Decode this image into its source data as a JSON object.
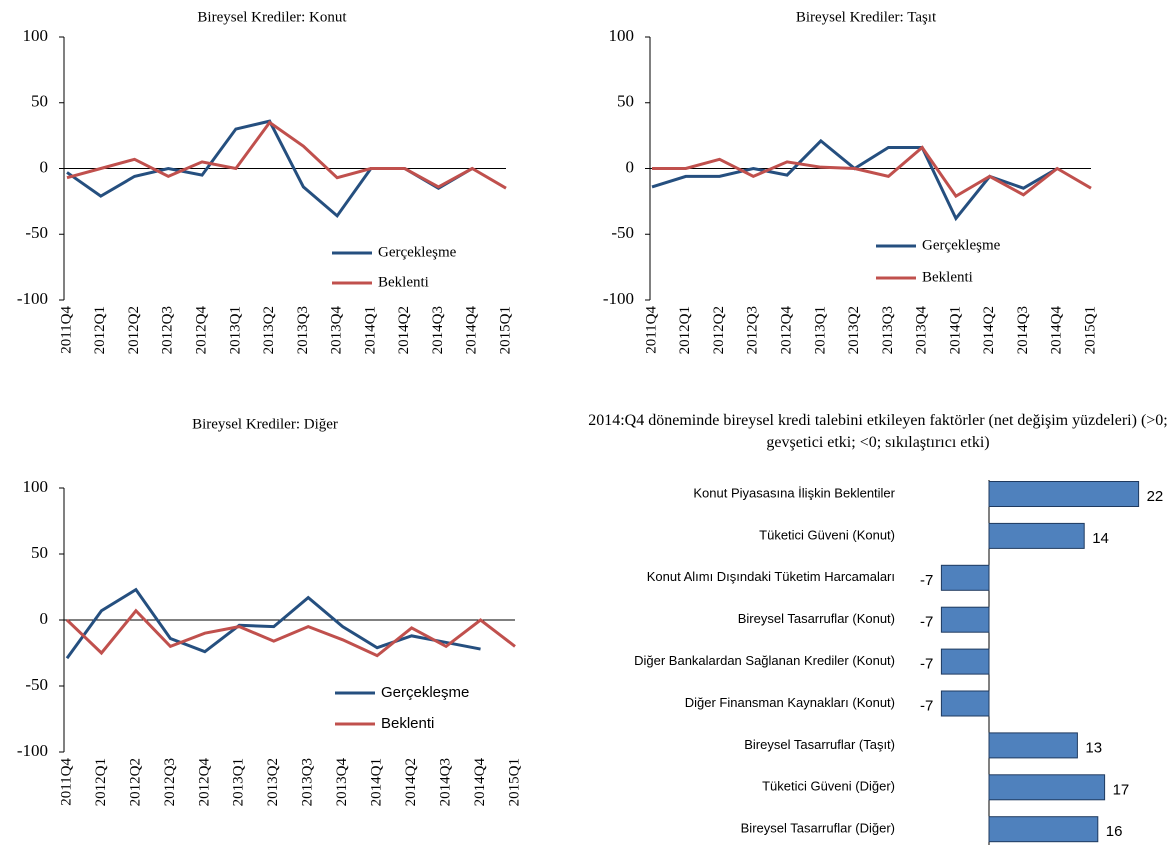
{
  "chart_data": [
    {
      "type": "line",
      "title": "Bireysel Krediler: Konut",
      "categories": [
        "2011Q4",
        "2012Q1",
        "2012Q2",
        "2012Q3",
        "2012Q4",
        "2013Q1",
        "2013Q2",
        "2013Q3",
        "2013Q4",
        "2014Q1",
        "2014Q2",
        "2014Q3",
        "2014Q4",
        "2015Q1"
      ],
      "series": [
        {
          "name": "Gerçekleşme",
          "color": "#254f7f",
          "values": [
            -3,
            -21,
            -6,
            0,
            -5,
            30,
            36,
            -14,
            -36,
            0,
            0,
            -15,
            0,
            null
          ]
        },
        {
          "name": "Beklenti",
          "color": "#c0504d",
          "values": [
            -7,
            0,
            7,
            -6,
            5,
            0,
            35,
            17,
            -7,
            0,
            0,
            -14,
            0,
            -15
          ]
        }
      ],
      "ylim": [
        -100,
        100
      ],
      "yticks": [
        -100,
        -50,
        0,
        50,
        100
      ]
    },
    {
      "type": "line",
      "title": "Bireysel Krediler: Taşıt",
      "categories": [
        "2011Q4",
        "2012Q1",
        "2012Q2",
        "2012Q3",
        "2012Q4",
        "2013Q1",
        "2013Q2",
        "2013Q3",
        "2013Q4",
        "2014Q1",
        "2014Q2",
        "2014Q3",
        "2014Q4",
        "2015Q1"
      ],
      "series": [
        {
          "name": "Gerçekleşme",
          "color": "#254f7f",
          "values": [
            -14,
            -6,
            -6,
            0,
            -5,
            21,
            0,
            16,
            16,
            -38,
            -6,
            -15,
            0,
            null
          ]
        },
        {
          "name": "Beklenti",
          "color": "#c0504d",
          "values": [
            0,
            0,
            7,
            -6,
            5,
            1,
            0,
            -6,
            16,
            -21,
            -6,
            -20,
            0,
            -15
          ]
        }
      ],
      "ylim": [
        -100,
        100
      ],
      "yticks": [
        -100,
        -50,
        0,
        50,
        100
      ]
    },
    {
      "type": "line",
      "title": "Bireysel Krediler: Diğer",
      "categories": [
        "2011Q4",
        "2012Q1",
        "2012Q2",
        "2012Q3",
        "2012Q4",
        "2013Q1",
        "2013Q2",
        "2013Q3",
        "2013Q4",
        "2014Q1",
        "2014Q2",
        "2014Q3",
        "2014Q4",
        "2015Q1"
      ],
      "series": [
        {
          "name": "Gerçekleşme",
          "color": "#254f7f",
          "values": [
            -29,
            7,
            23,
            -14,
            -24,
            -4,
            -5,
            17,
            -5,
            -21,
            -12,
            -17,
            -22,
            null
          ]
        },
        {
          "name": "Beklenti",
          "color": "#c0504d",
          "values": [
            0,
            -25,
            7,
            -20,
            -10,
            -5,
            -16,
            -5,
            -15,
            -27,
            -6,
            -20,
            0,
            -20
          ]
        }
      ],
      "ylim": [
        -100,
        100
      ],
      "yticks": [
        -100,
        -50,
        0,
        50,
        100
      ]
    },
    {
      "type": "hbar",
      "title": "2014:Q4 döneminde bireysel kredi talebini etkileyen faktörler (net değişim yüzdeleri) (>0; gevşetici etki; <0; sıkılaştırıcı etki)",
      "categories": [
        "Konut Piyasasına İlişkin Beklentiler",
        "Tüketici Güveni (Konut)",
        "Konut Alımı Dışındaki Tüketim Harcamaları",
        "Bireysel Tasarruflar (Konut)",
        "Diğer Bankalardan Sağlanan Krediler (Konut)",
        "Diğer Finansman Kaynakları (Konut)",
        "Bireysel Tasarruflar (Taşıt)",
        "Tüketici Güveni (Diğer)",
        "Bireysel Tasarruflar (Diğer)"
      ],
      "values": [
        22,
        14,
        -7,
        -7,
        -7,
        -7,
        13,
        17,
        16
      ],
      "color": "#4f81bd"
    }
  ]
}
